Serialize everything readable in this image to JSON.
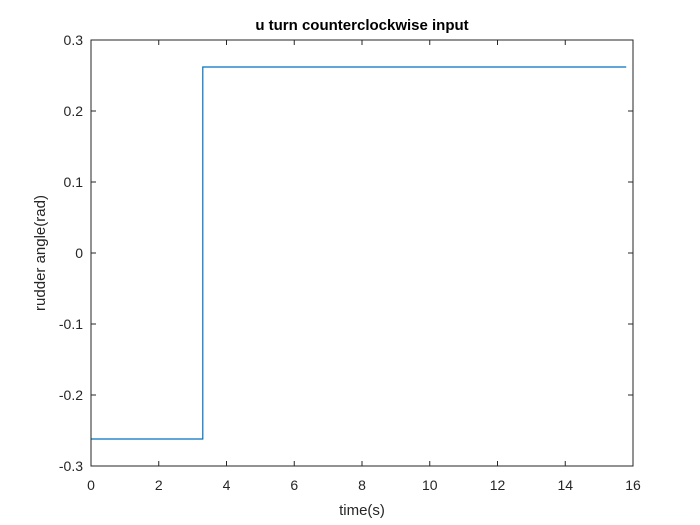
{
  "chart_data": {
    "type": "line",
    "title": "u turn counterclockwise input",
    "xlabel": "time(s)",
    "ylabel": "rudder angle(rad)",
    "xlim": [
      0,
      16
    ],
    "ylim": [
      -0.3,
      0.3
    ],
    "xticks": [
      0,
      2,
      4,
      6,
      8,
      10,
      12,
      14,
      16
    ],
    "yticks": [
      -0.3,
      -0.2,
      -0.1,
      0,
      0.1,
      0.2,
      0.3
    ],
    "xtick_labels": [
      "0",
      "2",
      "4",
      "6",
      "8",
      "10",
      "12",
      "14",
      "16"
    ],
    "ytick_labels": [
      "-0.3",
      "-0.2",
      "-0.1",
      "0",
      "0.1",
      "0.2",
      "0.3"
    ],
    "grid": false,
    "box": true,
    "series": [
      {
        "color": "#0072BD",
        "x": [
          0,
          3.3,
          3.3,
          15.8
        ],
        "y": [
          -0.262,
          -0.262,
          0.262,
          0.262
        ]
      }
    ]
  }
}
